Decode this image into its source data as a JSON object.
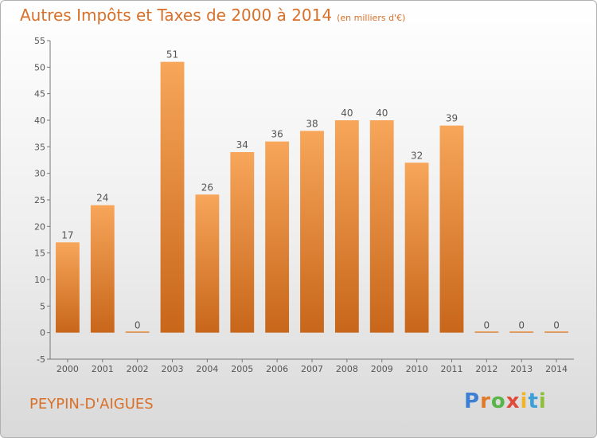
{
  "header": {
    "title": "Autres Impôts et Taxes de 2000 à 2014",
    "subtitle": "(en milliers d'€)"
  },
  "footer": {
    "commune": "PEYPIN-D'AIGUES",
    "logo": [
      "P",
      "r",
      "o",
      "x",
      "i",
      "t",
      "i"
    ]
  },
  "colors": {
    "bar_light": "#f7a65a",
    "bar_dark": "#c8661a",
    "text": "#d9702a"
  },
  "chart_data": {
    "type": "bar",
    "title": "Autres Impôts et Taxes de 2000 à 2014",
    "subtitle": "(en milliers d'€)",
    "xlabel": "",
    "ylabel": "",
    "categories": [
      "2000",
      "2001",
      "2002",
      "2003",
      "2004",
      "2005",
      "2006",
      "2007",
      "2008",
      "2009",
      "2010",
      "2011",
      "2012",
      "2013",
      "2014"
    ],
    "values": [
      17,
      24,
      0,
      51,
      26,
      34,
      36,
      38,
      40,
      40,
      32,
      39,
      0,
      0,
      0
    ],
    "data_labels": [
      "17",
      "24",
      "0",
      "51",
      "26",
      "34",
      "36",
      "38",
      "40",
      "40",
      "32",
      "39",
      "0",
      "0",
      "0"
    ],
    "ylim": [
      -5,
      55
    ],
    "yticks": [
      -5,
      0,
      5,
      10,
      15,
      20,
      25,
      30,
      35,
      40,
      45,
      50,
      55
    ],
    "grid": false,
    "legend": "none"
  }
}
